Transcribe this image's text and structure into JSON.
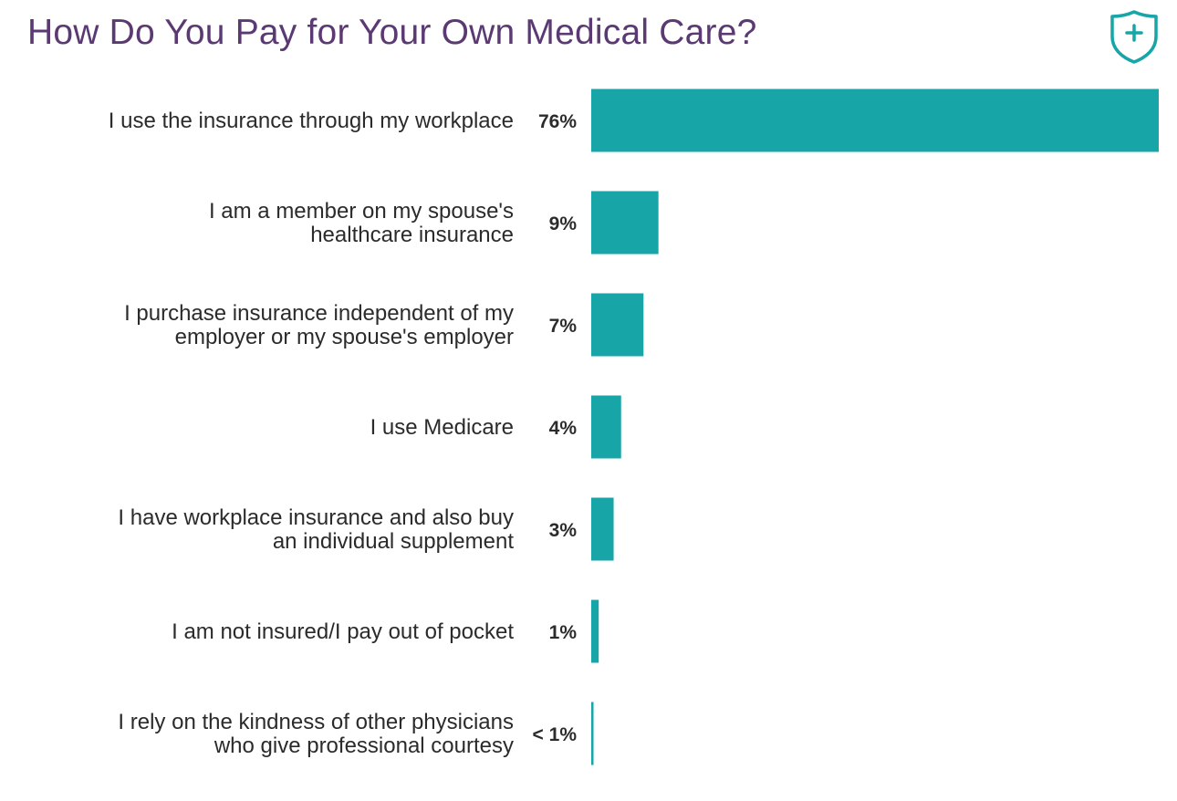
{
  "title": "How Do You Pay for Your Own Medical Care?",
  "badge_icon": "shield-plus-icon",
  "colors": {
    "title": "#5b3a73",
    "bar": "#18a5a7",
    "text": "#2b2b2b"
  },
  "chart_data": {
    "type": "bar",
    "orientation": "horizontal",
    "title": "How Do You Pay for Your Own Medical Care?",
    "categories": [
      [
        "I use the insurance through my workplace"
      ],
      [
        "I am a member on my spouse's",
        "healthcare insurance"
      ],
      [
        "I purchase insurance independent of my",
        "employer or my spouse's employer"
      ],
      [
        "I use Medicare"
      ],
      [
        "I have workplace insurance and also buy",
        "an individual supplement"
      ],
      [
        "I am not insured/I pay out of pocket"
      ],
      [
        "I rely on the kindness of other physicians",
        "who give professional courtesy"
      ]
    ],
    "values": [
      76,
      9,
      7,
      4,
      3,
      1,
      0.2
    ],
    "value_labels": [
      "76%",
      "9%",
      "7%",
      "4%",
      "3%",
      "1%",
      "< 1%"
    ],
    "unit": "%",
    "xlim": [
      0,
      76
    ],
    "grid": false,
    "legend": "none",
    "data_labels": "left-of-bar"
  }
}
